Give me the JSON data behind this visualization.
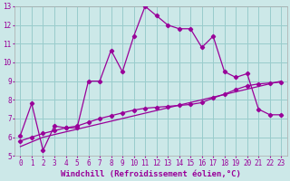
{
  "title": "",
  "xlabel": "Windchill (Refroidissement éolien,°C)",
  "bg_color": "#cce8e8",
  "grid_color": "#99cccc",
  "line_color": "#990099",
  "xlim": [
    -0.5,
    23.5
  ],
  "ylim": [
    5,
    13
  ],
  "xticks": [
    0,
    1,
    2,
    3,
    4,
    5,
    6,
    7,
    8,
    9,
    10,
    11,
    12,
    13,
    14,
    15,
    16,
    17,
    18,
    19,
    20,
    21,
    22,
    23
  ],
  "yticks": [
    5,
    6,
    7,
    8,
    9,
    10,
    11,
    12,
    13
  ],
  "series1_x": [
    0,
    1,
    2,
    3,
    4,
    5,
    6,
    7,
    8,
    9,
    10,
    11,
    12,
    13,
    14,
    15,
    16,
    17,
    18,
    19,
    20,
    21,
    22,
    23
  ],
  "series1_y": [
    6.1,
    7.8,
    5.3,
    6.6,
    6.5,
    6.5,
    9.0,
    9.0,
    10.65,
    9.5,
    11.4,
    13.0,
    12.5,
    12.0,
    11.8,
    11.8,
    10.8,
    11.4,
    9.5,
    9.2,
    9.4,
    7.5,
    7.2,
    7.2
  ],
  "series2_x": [
    0,
    1,
    2,
    3,
    4,
    5,
    6,
    7,
    8,
    9,
    10,
    11,
    12,
    13,
    14,
    15,
    16,
    17,
    18,
    19,
    20,
    21,
    22,
    23
  ],
  "series2_y": [
    5.8,
    6.0,
    6.2,
    6.35,
    6.5,
    6.6,
    6.8,
    7.0,
    7.15,
    7.3,
    7.45,
    7.55,
    7.6,
    7.65,
    7.7,
    7.75,
    7.85,
    8.1,
    8.3,
    8.55,
    8.75,
    8.85,
    8.9,
    8.95
  ],
  "series3_x": [
    0,
    2,
    23
  ],
  "series3_y": [
    5.5,
    6.0,
    9.0
  ],
  "marker": "D",
  "markersize": 2.2,
  "linewidth": 0.9,
  "xlabel_fontsize": 6.5,
  "tick_fontsize": 5.5
}
